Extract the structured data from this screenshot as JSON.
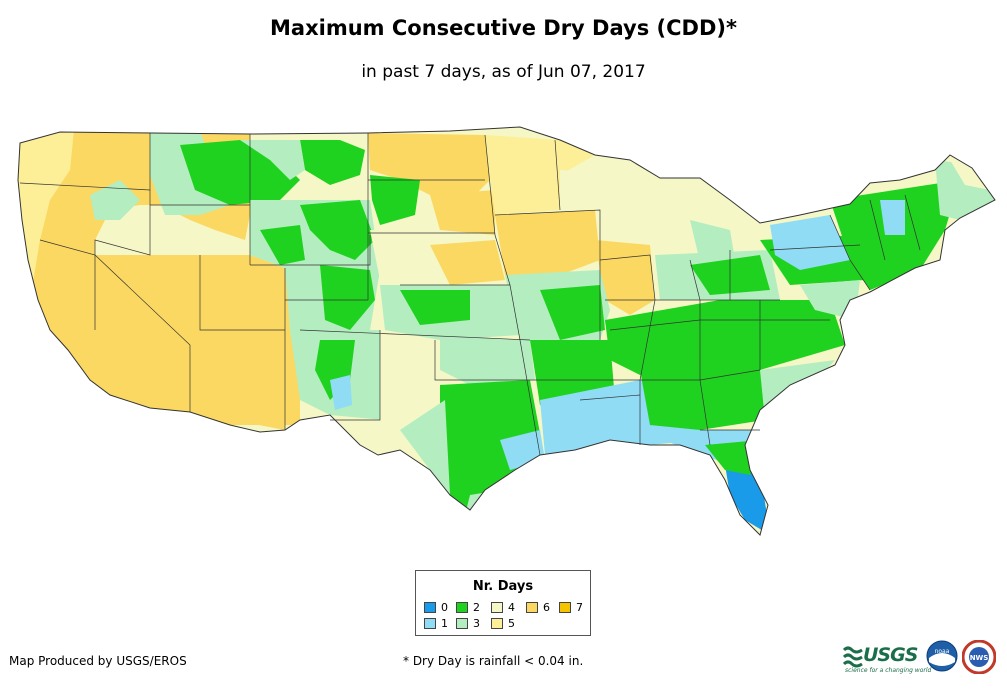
{
  "title": "Maximum Consecutive Dry Days (CDD)*",
  "subtitle": "in past 7 days, as of Jun 07, 2017",
  "legend": {
    "title": "Nr. Days",
    "items": [
      {
        "label": "0",
        "color": "#1a9bea"
      },
      {
        "label": "1",
        "color": "#8fdcf4"
      },
      {
        "label": "2",
        "color": "#1fd21f"
      },
      {
        "label": "3",
        "color": "#b4edc0"
      },
      {
        "label": "4",
        "color": "#f5f7c6"
      },
      {
        "label": "5",
        "color": "#fdef97"
      },
      {
        "label": "6",
        "color": "#fbd862"
      },
      {
        "label": "7",
        "color": "#f5c400"
      }
    ]
  },
  "credit": "Map Produced by USGS/EROS",
  "footnote": "* Dry Day is rainfall < 0.04 in.",
  "logos": {
    "usgs_text": "USGS",
    "usgs_tagline": "science for a changing world",
    "noaa_text": "noaa",
    "nws_text": "NWS"
  },
  "colors": {
    "c0": "#1a9bea",
    "c1": "#8fdcf4",
    "c2": "#1fd21f",
    "c3": "#b4edc0",
    "c4": "#f5f7c6",
    "c5": "#fdef97",
    "c6": "#fbd862",
    "c7": "#f5c400",
    "border": "#333333"
  }
}
